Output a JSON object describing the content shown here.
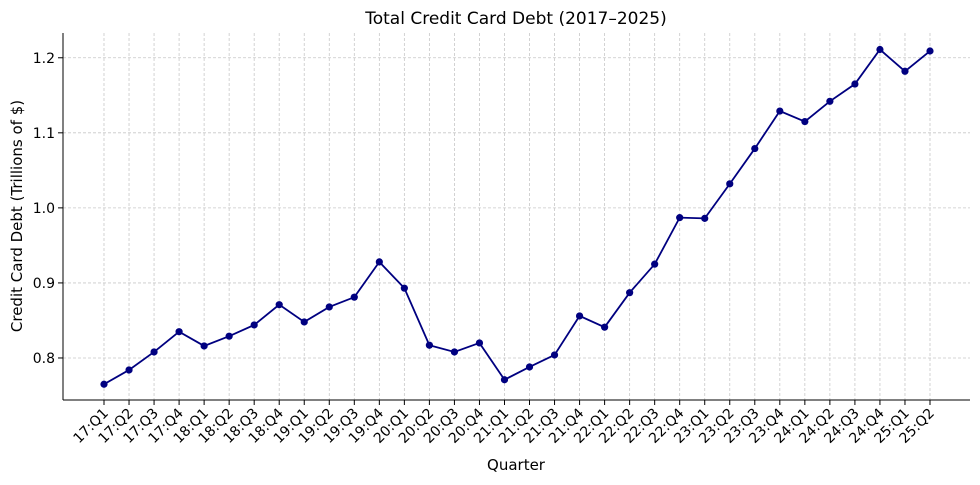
{
  "chart_data": {
    "type": "line",
    "title": "Total Credit Card Debt (2017–2025)",
    "xlabel": "Quarter",
    "ylabel": "Credit Card Debt (Trillions of $)",
    "categories": [
      "17:Q1",
      "17:Q2",
      "17:Q3",
      "17:Q4",
      "18:Q1",
      "18:Q2",
      "18:Q3",
      "18:Q4",
      "19:Q1",
      "19:Q2",
      "19:Q3",
      "19:Q4",
      "20:Q1",
      "20:Q2",
      "20:Q3",
      "20:Q4",
      "21:Q1",
      "21:Q2",
      "21:Q3",
      "21:Q4",
      "22:Q1",
      "22:Q2",
      "22:Q3",
      "22:Q4",
      "23:Q1",
      "23:Q2",
      "23:Q3",
      "23:Q4",
      "24:Q1",
      "24:Q2",
      "24:Q3",
      "24:Q4",
      "25:Q1",
      "25:Q2"
    ],
    "series": [
      {
        "name": "Credit Card Debt",
        "color": "#000080",
        "values": [
          0.765,
          0.784,
          0.808,
          0.835,
          0.816,
          0.829,
          0.844,
          0.871,
          0.848,
          0.868,
          0.881,
          0.928,
          0.893,
          0.817,
          0.808,
          0.82,
          0.771,
          0.788,
          0.804,
          0.856,
          0.841,
          0.887,
          0.925,
          0.987,
          0.986,
          1.032,
          1.079,
          1.129,
          1.115,
          1.142,
          1.165,
          1.211,
          1.182,
          1.209
        ]
      }
    ],
    "ylim": [
      0.744,
      1.233
    ],
    "yticks": [
      0.8,
      0.9,
      {
        "value": 1,
        "label": "1.0"
      },
      1.1,
      1.2
    ],
    "grid": true
  }
}
